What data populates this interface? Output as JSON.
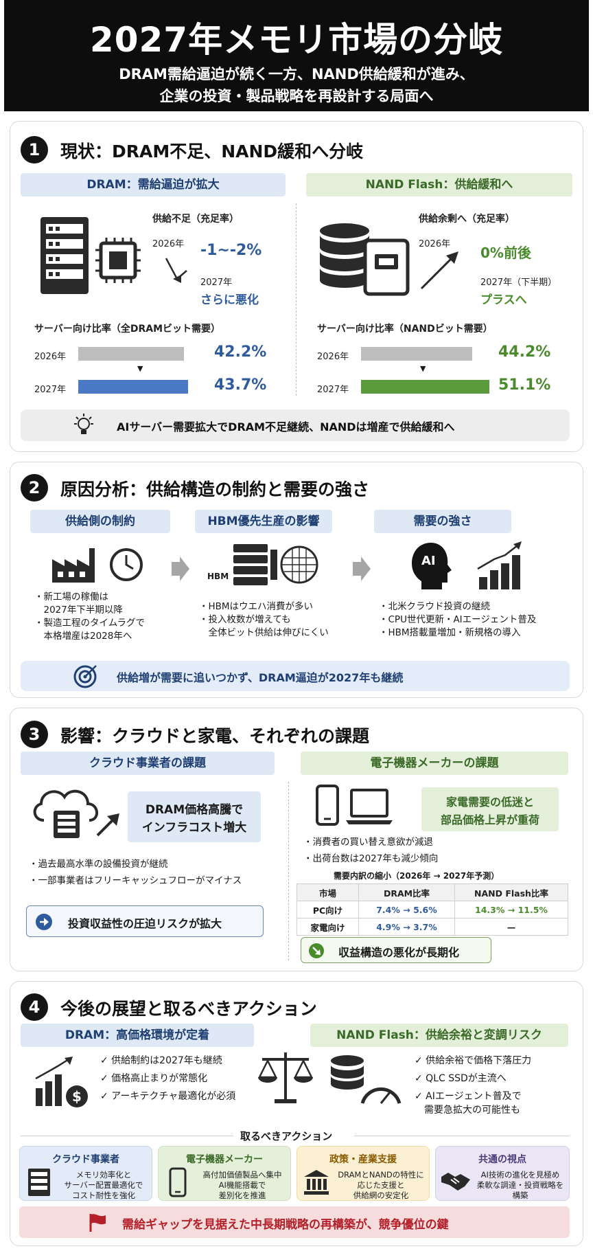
{
  "header": {
    "title": "2027年メモリ市場の分岐",
    "subtitle_line1": "DRAM需給逼迫が続く一方、NAND供給緩和が進み、",
    "subtitle_line2": "企業の投資・製品戦略を再設計する局面へ"
  },
  "s1": {
    "num": "1",
    "title": "現状：DRAM不足、NAND緩和へ分岐",
    "dram": {
      "band": "DRAM：需給逼迫が拡大",
      "supply_label": "供給不足（充足率）",
      "year_2026": "2026年",
      "value_2026": "-1~-2%",
      "year_2027": "2027年",
      "value_2027": "さらに悪化",
      "ratio_label": "サーバー向け比率（全DRAMビット需要）",
      "rows": [
        {
          "year": "2026年",
          "value": "42.2%",
          "pct": 42.2
        },
        {
          "year": "2027年",
          "value": "43.7%",
          "pct": 43.7
        }
      ]
    },
    "nand": {
      "band": "NAND Flash：供給緩和へ",
      "supply_label": "供給余剰へ（充足率）",
      "year_2026": "2026年",
      "value_2026": "0%前後",
      "year_2027": "2027年（下半期）",
      "value_2027": "プラスへ",
      "ratio_label": "サーバー向け比率（NANDビット需要）",
      "rows": [
        {
          "year": "2026年",
          "value": "44.2%",
          "pct": 44.2
        },
        {
          "year": "2027年",
          "value": "51.1%",
          "pct": 51.1
        }
      ]
    },
    "summary": "AIサーバー需要拡大でDRAM不足継続、NANDは増産で供給緩和へ"
  },
  "s2": {
    "num": "2",
    "title": "原因分析：供給構造の制約と需要の強さ",
    "col1": {
      "band": "供給側の制約",
      "bullets": [
        "・新工場の稼働は",
        "　2027年下半期以降",
        "・製造工程のタイムラグで",
        "　本格増産は2028年へ"
      ]
    },
    "col2": {
      "band": "HBM優先生産の影響",
      "hbm_label": "HBM",
      "bullets": [
        "・HBMはウエハ消費が多い",
        "・投入枚数が増えても",
        "　全体ビット供給は伸びにくい"
      ]
    },
    "col3": {
      "band": "需要の強さ",
      "ai_label": "AI",
      "bullets": [
        "・北米クラウド投資の継続",
        "・CPU世代更新・AIエージェント普及",
        "・HBM搭載量増加・新規格の導入"
      ]
    },
    "summary": "供給増が需要に追いつかず、DRAM逼迫が2027年も継続"
  },
  "s3": {
    "num": "3",
    "title": "影響：クラウドと家電、それぞれの課題",
    "cloud": {
      "band": "クラウド事業者の課題",
      "callout_1": "DRAM価格高騰で",
      "callout_2": "インフラコスト増大",
      "bullets": [
        "・過去最高水準の設備投資が継続",
        "・一部事業者はフリーキャッシュフローがマイナス"
      ],
      "risk": "投資収益性の圧迫リスクが拡大"
    },
    "maker": {
      "band": "電子機器メーカーの課題",
      "callout_1": "家電需要の低迷と",
      "callout_2": "部品価格上昇が重荷",
      "bullets": [
        "・消費者の買い替え意欲が減退",
        "・出荷台数は2027年も減少傾向"
      ],
      "table_title": "需要内訳の縮小（2026年 → 2027年予測）",
      "table_head": [
        "市場",
        "DRAM比率",
        "NAND Flash比率"
      ],
      "table_rows": [
        [
          "PC向け",
          "7.4% → 5.6%",
          "14.3% → 11.5%"
        ],
        [
          "家電向け",
          "4.9% → 3.7%",
          "—"
        ]
      ],
      "risk": "収益構造の悪化が長期化"
    }
  },
  "s4": {
    "num": "4",
    "title": "今後の展望と取るべきアクション",
    "dram": {
      "band": "DRAM：高価格環境が定着",
      "checks": [
        "✓ 供給制約は2027年も継続",
        "✓ 価格高止まりが常態化",
        "✓ アーキテクチャ最適化が必須"
      ]
    },
    "nand": {
      "band": "NAND Flash：供給余裕と変調リスク",
      "checks": [
        "✓ 供給余裕で価格下落圧力",
        "✓ QLC SSDが主流へ",
        "✓ AIエージェント普及で",
        "　需要急拡大の可能性も"
      ]
    },
    "actions_label": "取るべきアクション",
    "cards": [
      {
        "title": "クラウド事業者",
        "lines": [
          "メモリ効率化と",
          "サーバー配置最適化で",
          "コスト耐性を強化"
        ]
      },
      {
        "title": "電子機器メーカー",
        "lines": [
          "高付加価値製品へ集中",
          "AI機能搭載で",
          "差別化を推進"
        ]
      },
      {
        "title": "政策・産業支援",
        "lines": [
          "DRAMとNANDの特性に",
          "応じた支援と",
          "供給網の安定化"
        ]
      },
      {
        "title": "共通の視点",
        "lines": [
          "AI技術の進化を見極め",
          "柔軟な調達・投資戦略を",
          "構築"
        ]
      }
    ],
    "final": "需給ギャップを見据えた中長期戦略の再構築が、競争優位の鍵"
  },
  "colors": {
    "dram_blue": "#4a78c2",
    "nand_green": "#5a9a3a",
    "gray_bar": "#bdbdbd",
    "final_band": "#f6dcdc",
    "final_text": "#b3202a"
  }
}
